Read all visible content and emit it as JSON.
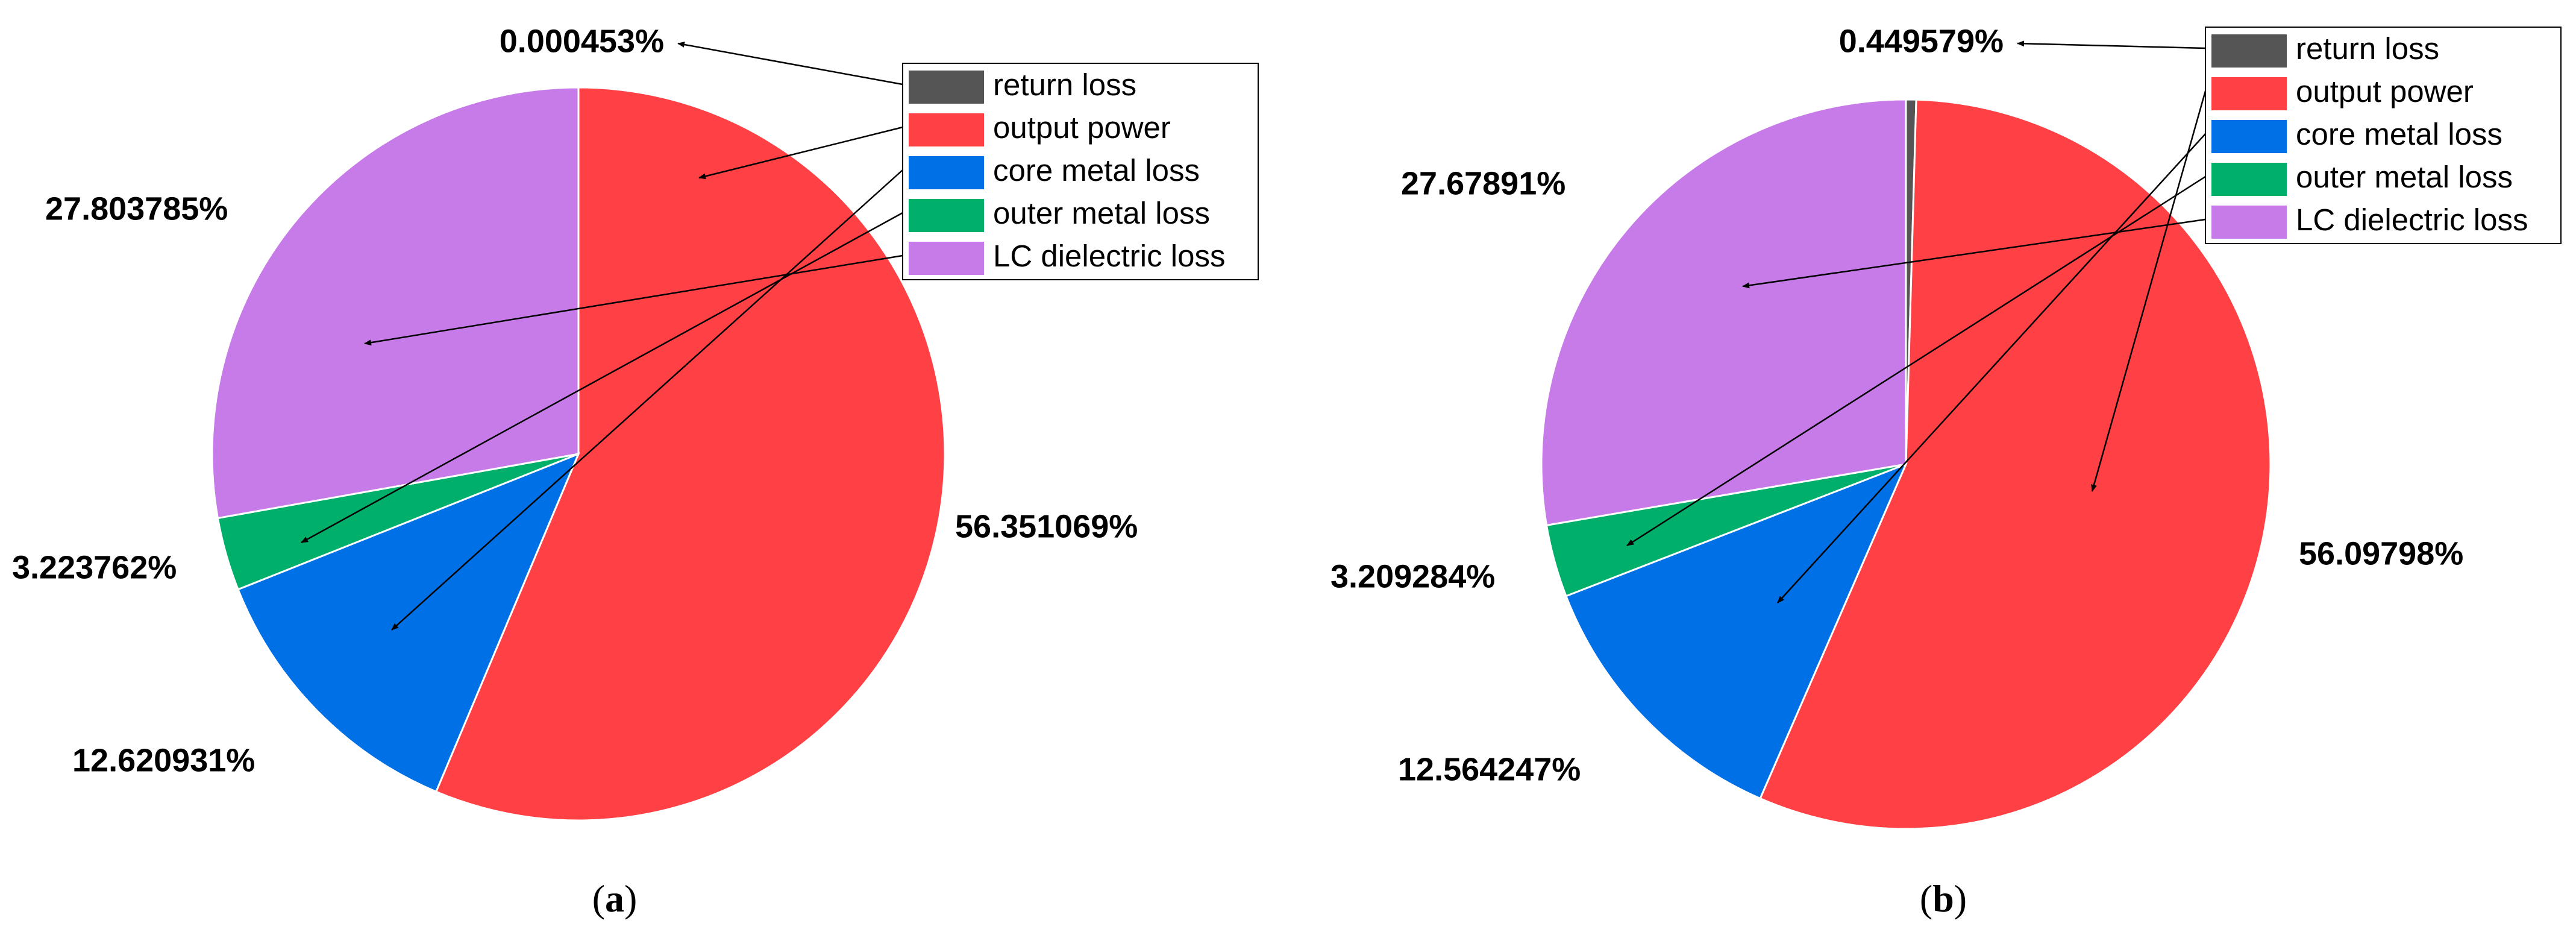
{
  "chart_data": [
    {
      "type": "pie",
      "panel_label": "a",
      "legend_placement": "top-right",
      "slices": [
        {
          "name": "return loss",
          "value": 0.000453,
          "label": "0.000453%",
          "color": "#555555"
        },
        {
          "name": "output power",
          "value": 56.351069,
          "label": "56.351069%",
          "color": "#FF4044"
        },
        {
          "name": "core metal loss",
          "value": 12.620931,
          "label": "12.620931%",
          "color": "#0070E6"
        },
        {
          "name": "outer metal loss",
          "value": 3.223762,
          "label": "3.223762%",
          "color": "#00B06A"
        },
        {
          "name": "LC dielectric loss",
          "value": 27.803785,
          "label": "27.803785%",
          "color": "#C77BE8"
        }
      ]
    },
    {
      "type": "pie",
      "panel_label": "b",
      "legend_placement": "top-right",
      "slices": [
        {
          "name": "return loss",
          "value": 0.449579,
          "label": "0.449579%",
          "color": "#555555"
        },
        {
          "name": "output power",
          "value": 56.09798,
          "label": "56.09798%",
          "color": "#FF4044"
        },
        {
          "name": "core metal loss",
          "value": 12.564247,
          "label": "12.564247%",
          "color": "#0070E6"
        },
        {
          "name": "outer metal loss",
          "value": 3.209284,
          "label": "3.209284%",
          "color": "#00B06A"
        },
        {
          "name": "LC dielectric loss",
          "value": 27.67891,
          "label": "27.67891%",
          "color": "#C77BE8"
        }
      ]
    }
  ]
}
